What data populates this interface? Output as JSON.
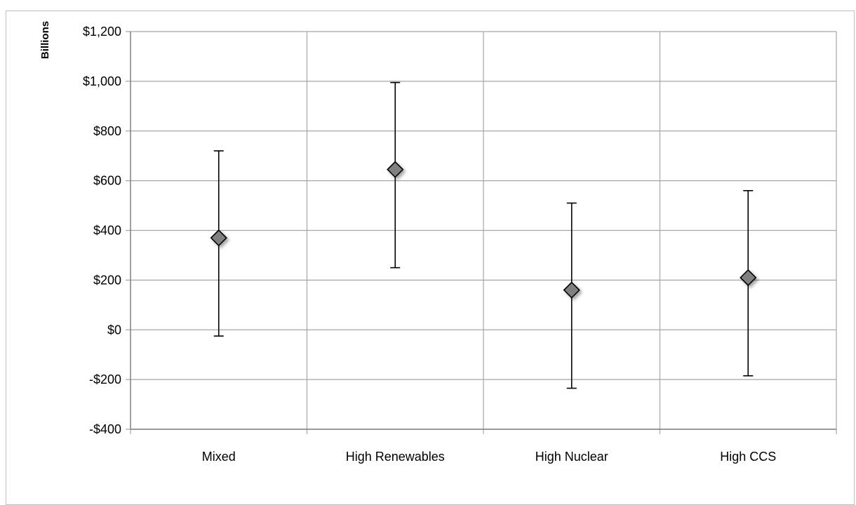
{
  "caption": "",
  "chart_data": {
    "type": "scatter",
    "subtype": "range-with-point",
    "title": "",
    "xlabel": "",
    "ylabel": "Billions",
    "ylim": [
      -400,
      1200
    ],
    "yticks": [
      1200,
      1000,
      800,
      600,
      400,
      200,
      0,
      -200,
      -400
    ],
    "ytick_labels": [
      "$1,200",
      "$1,000",
      "$800",
      "$600",
      "$400",
      "$200",
      "$0",
      "-$200",
      "-$400"
    ],
    "grid": true,
    "legend": "none",
    "categories": [
      "Mixed",
      "High Renewables",
      "High Nuclear",
      "High CCS"
    ],
    "series": [
      {
        "values": [
          370,
          645,
          160,
          210
        ],
        "low": [
          -25,
          250,
          -235,
          -185
        ],
        "high": [
          720,
          995,
          510,
          560
        ],
        "marker": "diamond",
        "color": "#808080"
      }
    ],
    "colors": {
      "grid": "#a6a6a6",
      "axis": "#7f7f7f",
      "marker": "#808080",
      "errorbar": "#000000"
    }
  }
}
